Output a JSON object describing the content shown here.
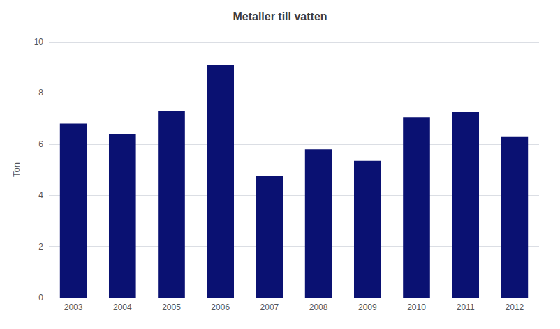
{
  "chart_data": {
    "type": "bar",
    "title": "Metaller till vatten",
    "ylabel": "Ton",
    "categories": [
      "2003",
      "2004",
      "2005",
      "2006",
      "2007",
      "2008",
      "2009",
      "2010",
      "2011",
      "2012"
    ],
    "values": [
      6.8,
      6.4,
      7.3,
      9.1,
      4.75,
      5.8,
      5.35,
      7.05,
      7.25,
      6.3
    ],
    "color": "#0A1172",
    "ylim": [
      0,
      10
    ],
    "yticks": [
      0,
      2,
      4,
      6,
      8,
      10
    ],
    "grid": true
  }
}
